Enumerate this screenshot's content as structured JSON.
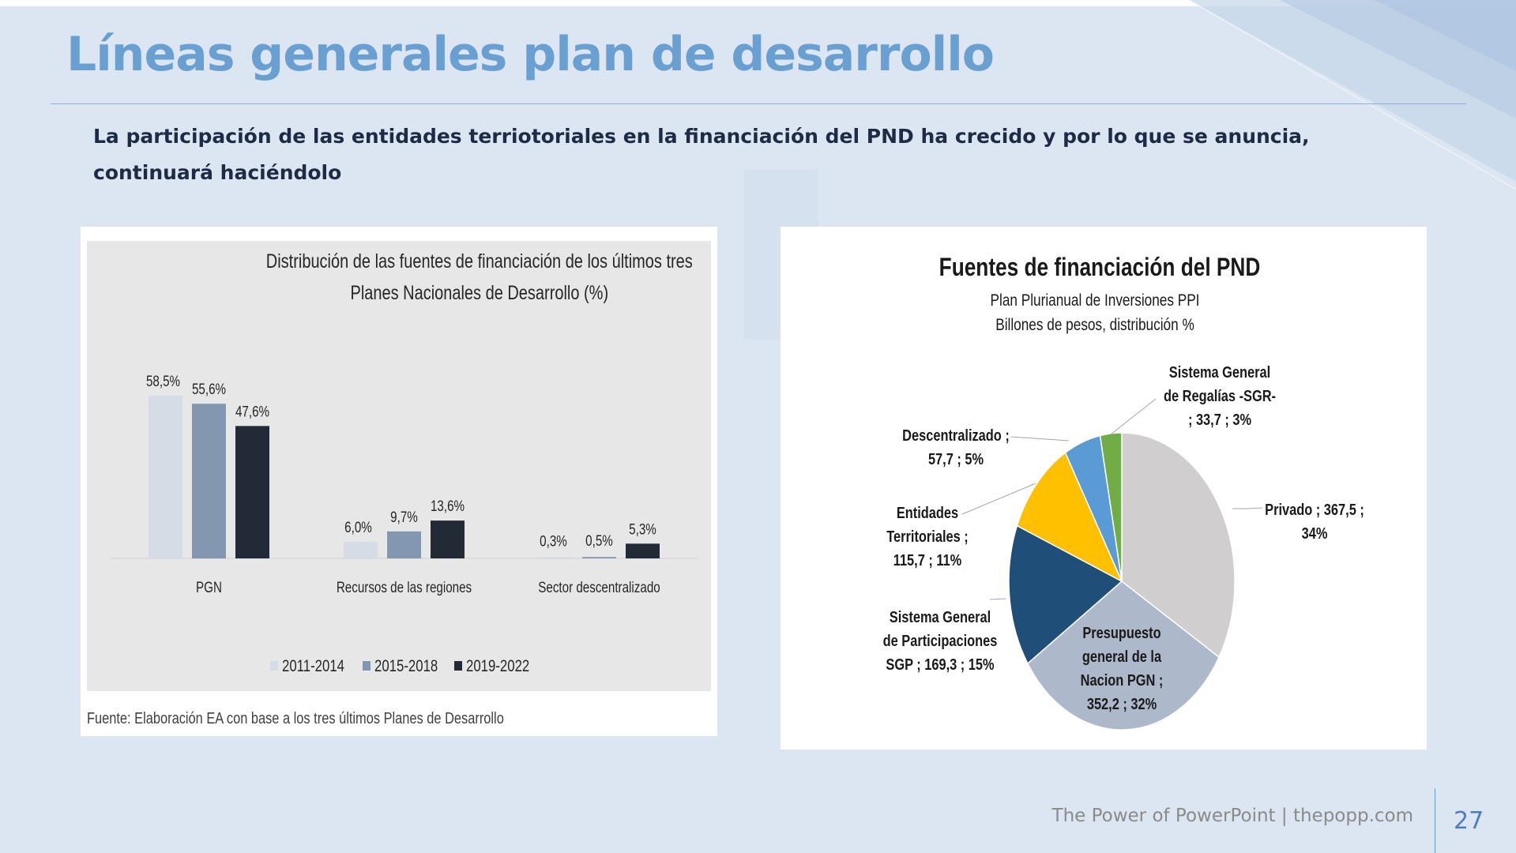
{
  "slide": {
    "title": "Líneas generales plan de desarrollo",
    "subtitle": "La participación de las entidades terriotoriales en la financiación del PND ha crecido y por lo que se anuncia, continuará haciéndolo",
    "footer": "The Power of PowerPoint | thepopp.com",
    "page_number": "27",
    "colors": {
      "background": "#dce6f2",
      "title": "#6a9fd1",
      "subtitle": "#1f2a44",
      "accent": "#4d7fc0"
    }
  },
  "source_note": "Fuente: Elaboración EA con base a los tres últimos Planes de Desarrollo",
  "chart_data": [
    {
      "type": "bar",
      "title_lines": [
        "Distribución de  las fuentes de financiación de los últimos tres",
        "Planes Nacionales de Desarrollo (%)"
      ],
      "categories": [
        "PGN",
        "Recursos de las regiones",
        "Sector descentralizado"
      ],
      "series": [
        {
          "name": "2011-2014",
          "color": "#d6dce5",
          "values": [
            58.5,
            6.0,
            0.3
          ],
          "labels": [
            "58,5%",
            "6,0%",
            "0,3%"
          ]
        },
        {
          "name": "2015-2018",
          "color": "#8497b0",
          "values": [
            55.6,
            9.7,
            0.5
          ],
          "labels": [
            "55,6%",
            "9,7%",
            "0,5%"
          ]
        },
        {
          "name": "2019-2022",
          "color": "#222a35",
          "values": [
            47.6,
            13.6,
            5.3
          ],
          "labels": [
            "47,6%",
            "13,6%",
            "5,3%"
          ]
        }
      ],
      "ylim": [
        0,
        58.5
      ],
      "grid": false,
      "legend_position": "bottom"
    },
    {
      "type": "pie",
      "title": "Fuentes de financiación del PND",
      "subtitle_lines": [
        "Plan Plurianual de Inversiones PPI",
        "Billones de pesos, distribución %"
      ],
      "slices": [
        {
          "name": "Privado",
          "value": 367.5,
          "percent": 34,
          "color": "#d0cece",
          "label_lines": [
            "Privado ;  367,5 ;",
            "34%"
          ]
        },
        {
          "name": "Presupuesto general de la Nacion PGN",
          "value": 352.2,
          "percent": 32,
          "color": "#adb9ca",
          "label_lines": [
            "Presupuesto",
            "general de la",
            "Nacion PGN ;",
            "352,2 ; 32%"
          ]
        },
        {
          "name": "Sistema General de Participaciones SGP",
          "value": 169.3,
          "percent": 15,
          "color": "#1f4e79",
          "label_lines": [
            "Sistema General",
            "de Participaciones",
            "SGP ;  169,3  ; 15%"
          ]
        },
        {
          "name": "Entidades Territoriales",
          "value": 115.7,
          "percent": 11,
          "color": "#ffc000",
          "label_lines": [
            "Entidades",
            "Territoriales ;",
            "115,7 ; 11%"
          ]
        },
        {
          "name": "Descentralizado",
          "value": 57.7,
          "percent": 5,
          "color": "#5b9bd5",
          "label_lines": [
            "Descentralizado ;",
            "57,7 ; 5%"
          ]
        },
        {
          "name": "Sistema General de Regalías -SGR-",
          "value": 33.7,
          "percent": 3,
          "color": "#70ad47",
          "label_lines": [
            "Sistema General",
            "de Regalías -SGR-",
            ";  33,7 ; 3%"
          ]
        }
      ],
      "start_angle_deg": 0,
      "direction": "clockwise"
    }
  ]
}
